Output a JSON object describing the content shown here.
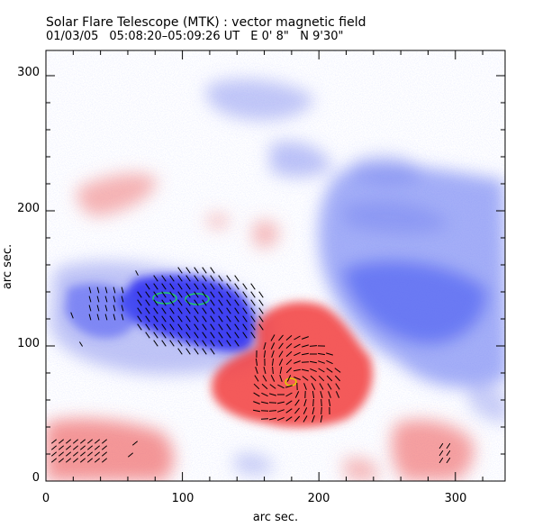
{
  "figure": {
    "title": "Solar Flare Telescope (MTK) : vector magnetic field",
    "date": "01/03/05",
    "time_range": "05:08:20–05:09:26 UT",
    "position": "E 0' 8\"   N 9'30\"",
    "xlabel": "arc sec.",
    "ylabel": "arc sec.",
    "x_ticks": [
      "0",
      "100",
      "200",
      "300"
    ],
    "y_ticks": [
      "0",
      "100",
      "200",
      "300"
    ]
  },
  "colors": {
    "positive_polarity": "#ff3c3c",
    "negative_polarity": "#3c3cff",
    "contour_green": "#22cc66",
    "contour_yellow": "#ddcc00"
  }
}
